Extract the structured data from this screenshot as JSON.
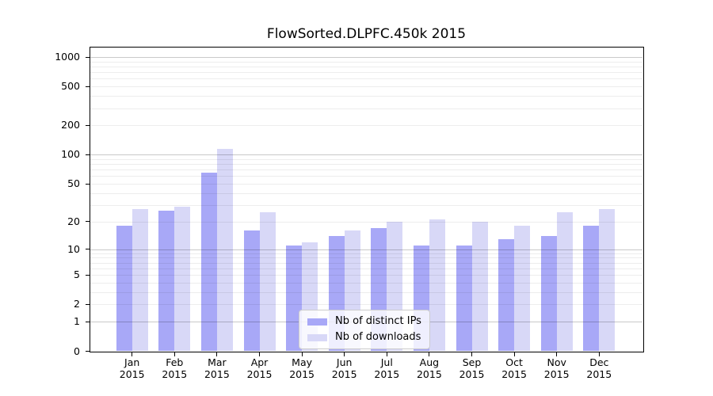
{
  "chart_data": {
    "type": "bar",
    "title": "FlowSorted.DLPFC.450k 2015",
    "categories": [
      "Jan",
      "Feb",
      "Mar",
      "Apr",
      "May",
      "Jun",
      "Jul",
      "Aug",
      "Sep",
      "Oct",
      "Nov",
      "Dec"
    ],
    "x_tick_year": "2015",
    "series": [
      {
        "name": "Nb of distinct IPs",
        "color": "#a8a8f7",
        "values": [
          18,
          26,
          65,
          16,
          11,
          14,
          17,
          11,
          11,
          13,
          14,
          18
        ]
      },
      {
        "name": "Nb of downloads",
        "color": "#d8d8f7",
        "values": [
          27,
          29,
          115,
          25,
          12,
          16,
          20,
          21,
          20,
          18,
          25,
          27
        ]
      }
    ],
    "y_axis": {
      "scale": "log10(1+v)",
      "ticks": [
        0,
        1,
        2,
        5,
        10,
        20,
        50,
        100,
        200,
        500,
        1000
      ],
      "top_value": 1250
    },
    "grid": {
      "major_color": "rgba(0,0,0,0.21)",
      "minor_color": "rgba(0,0,0,0.07)"
    },
    "legend": {
      "position": "lower-center"
    }
  }
}
